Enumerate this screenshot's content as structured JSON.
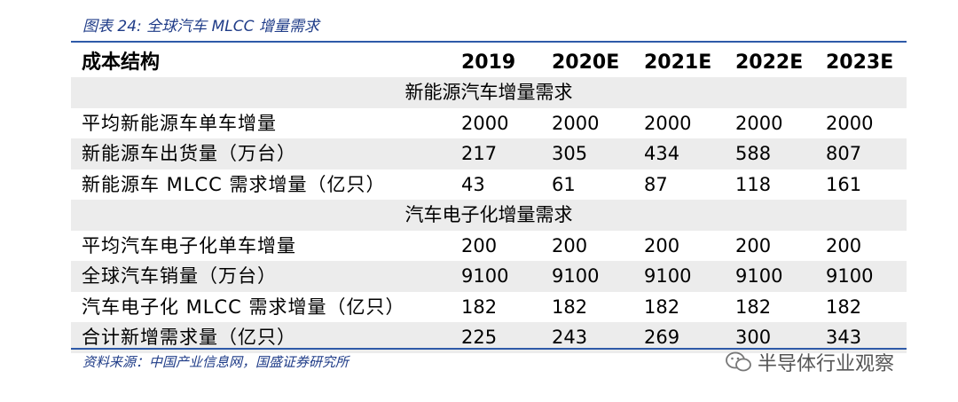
{
  "caption": "图表 24:  全球汽车 MLCC 增量需求",
  "table": {
    "header": [
      "成本结构",
      "2019",
      "2020E",
      "2021E",
      "2022E",
      "2023E"
    ],
    "rows": [
      {
        "section": "新能源汽车增量需求"
      },
      {
        "label": "平均新能源车单车增量",
        "values": [
          2000,
          2000,
          2000,
          2000,
          2000
        ]
      },
      {
        "label": "新能源车出货量（万台）",
        "values": [
          217,
          305,
          434,
          588,
          807
        ]
      },
      {
        "label": "新能源车 MLCC 需求增量（亿只）",
        "values": [
          43,
          61,
          87,
          118,
          161
        ]
      },
      {
        "section": "汽车电子化增量需求"
      },
      {
        "label": "平均汽车电子化单车增量",
        "values": [
          200,
          200,
          200,
          200,
          200
        ]
      },
      {
        "label": "全球汽车销量（万台）",
        "values": [
          9100,
          9100,
          9100,
          9100,
          9100
        ]
      },
      {
        "label": "汽车电子化 MLCC 需求增量（亿只）",
        "values": [
          182,
          182,
          182,
          182,
          182
        ]
      },
      {
        "label": "合计新增需求量（亿只）",
        "values": [
          225,
          243,
          269,
          300,
          343
        ]
      }
    ]
  },
  "source": "资料来源：中国产业信息网，国盛证券研究所",
  "watermark": "半导体行业观察"
}
